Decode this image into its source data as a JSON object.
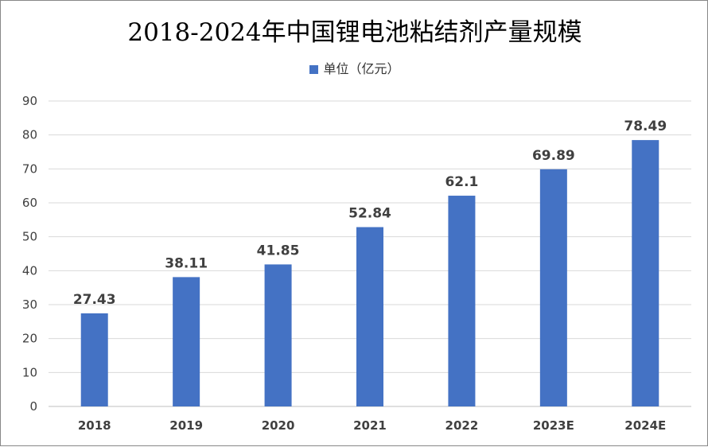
{
  "chart_data": {
    "type": "bar",
    "title": "2018-2024年中国锂电池粘结剂产量规模",
    "categories": [
      "2018",
      "2019",
      "2020",
      "2021",
      "2022",
      "2023E",
      "2024E"
    ],
    "series": [
      {
        "name": "单位（亿元）",
        "values": [
          27.43,
          38.11,
          41.85,
          52.84,
          62.1,
          69.89,
          78.49
        ]
      }
    ],
    "data_labels": [
      "27.43",
      "38.11",
      "41.85",
      "52.84",
      "62.1",
      "69.89",
      "78.49"
    ],
    "ylim": [
      0,
      90
    ],
    "yticks": [
      0,
      10,
      20,
      30,
      40,
      50,
      60,
      70,
      80,
      90
    ],
    "grid": true,
    "legend": "top",
    "colors": {
      "bar": "#4472C4",
      "grid": "#D9D9D9"
    }
  }
}
